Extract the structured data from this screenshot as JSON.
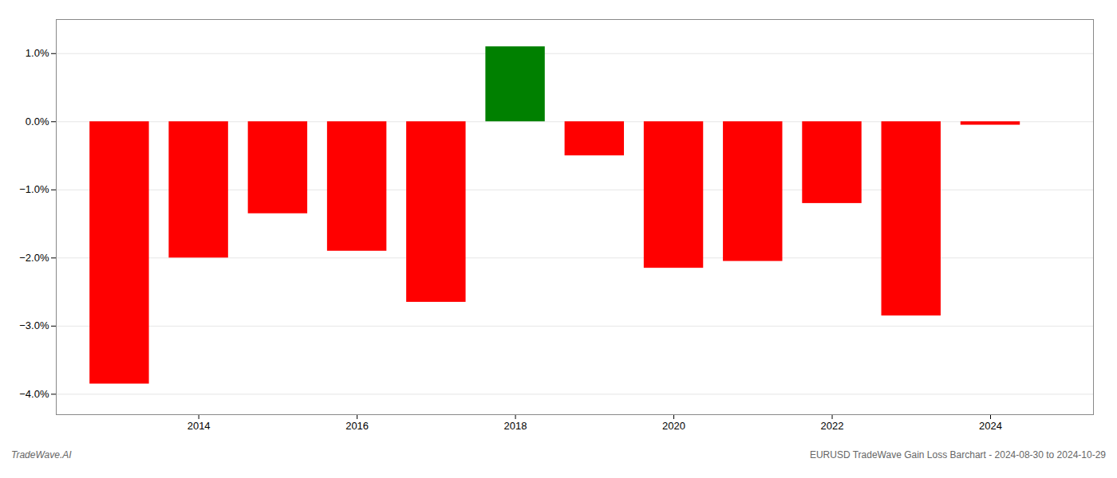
{
  "chart_data": {
    "type": "bar",
    "x": [
      2013,
      2014,
      2015,
      2016,
      2017,
      2018,
      2019,
      2020,
      2021,
      2022,
      2023,
      2024
    ],
    "values": [
      -3.85,
      -2.0,
      -1.35,
      -1.9,
      -2.65,
      1.1,
      -0.5,
      -2.15,
      -2.05,
      -1.2,
      -2.85,
      -0.05
    ],
    "colors": [
      "#FF0000",
      "#FF0000",
      "#FF0000",
      "#FF0000",
      "#FF0000",
      "#008000",
      "#FF0000",
      "#FF0000",
      "#FF0000",
      "#FF0000",
      "#FF0000",
      "#FF0000"
    ],
    "xlim": [
      2012.2,
      2025.3
    ],
    "xticks": [
      2014,
      2016,
      2018,
      2020,
      2022,
      2024
    ],
    "ylim": [
      -4.3,
      1.5
    ],
    "yticks": [
      {
        "value": -4.0,
        "label": "−4.0%"
      },
      {
        "value": -3.0,
        "label": "−3.0%"
      },
      {
        "value": -2.0,
        "label": "−2.0%"
      },
      {
        "value": -1.0,
        "label": "−1.0%"
      },
      {
        "value": 0.0,
        "label": "0.0%"
      },
      {
        "value": 1.0,
        "label": "1.0%"
      }
    ],
    "grid": true,
    "annotations": [
      "TradeWave.AI",
      "EURUSD TradeWave Gain Loss Barchart - 2024-08-30 to 2024-10-29"
    ]
  }
}
